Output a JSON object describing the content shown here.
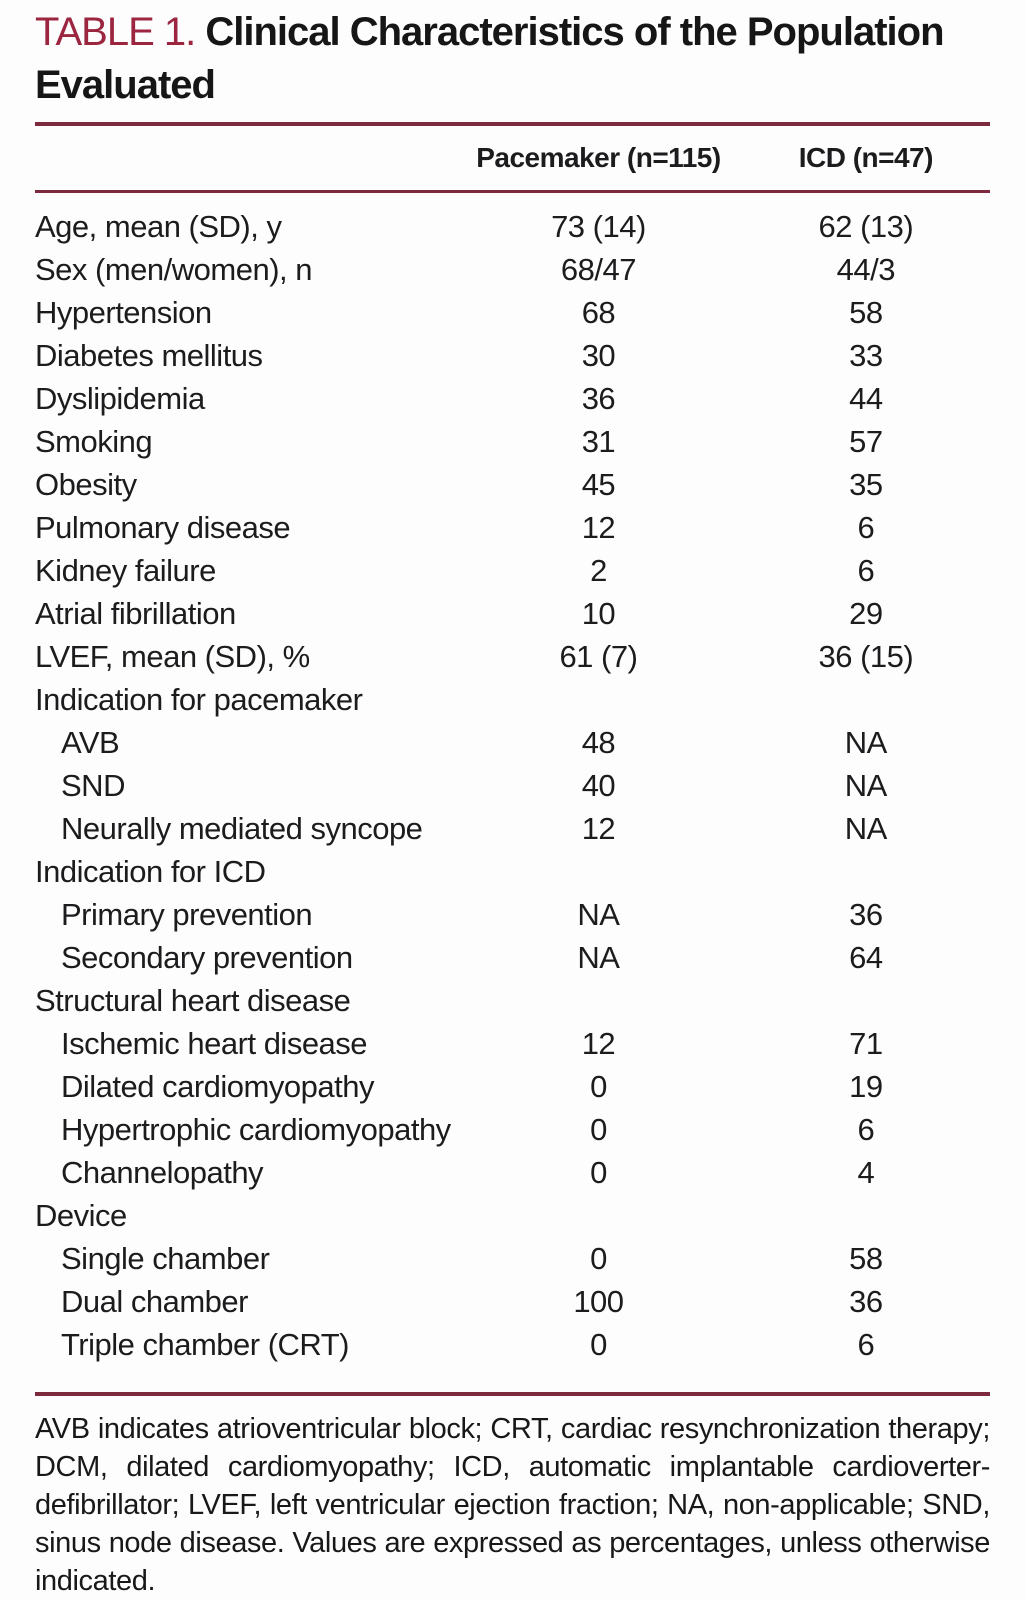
{
  "title": {
    "tag": "TABLE 1.",
    "line1": "Clinical Characteristics of the Population",
    "line2": "Evaluated"
  },
  "table": {
    "header": {
      "col1": "",
      "col2": "Pacemaker (n=115)",
      "col3": "ICD (n=47)"
    },
    "rows": [
      {
        "label": "Age, mean (SD), y",
        "indent": 0,
        "values": [
          "73 (14)",
          "62 (13)"
        ]
      },
      {
        "label": "Sex (men/women), n",
        "indent": 0,
        "values": [
          "68/47",
          "44/3"
        ]
      },
      {
        "label": "Hypertension",
        "indent": 0,
        "values": [
          "68",
          "58"
        ]
      },
      {
        "label": "Diabetes mellitus",
        "indent": 0,
        "values": [
          "30",
          "33"
        ]
      },
      {
        "label": "Dyslipidemia",
        "indent": 0,
        "values": [
          "36",
          "44"
        ]
      },
      {
        "label": "Smoking",
        "indent": 0,
        "values": [
          "31",
          "57"
        ]
      },
      {
        "label": "Obesity",
        "indent": 0,
        "values": [
          "45",
          "35"
        ]
      },
      {
        "label": "Pulmonary disease",
        "indent": 0,
        "values": [
          "12",
          "6"
        ]
      },
      {
        "label": "Kidney failure",
        "indent": 0,
        "values": [
          "2",
          "6"
        ]
      },
      {
        "label": "Atrial fibrillation",
        "indent": 0,
        "values": [
          "10",
          "29"
        ]
      },
      {
        "label": "LVEF, mean (SD), %",
        "indent": 0,
        "values": [
          "61 (7)",
          "36 (15)"
        ]
      },
      {
        "label": "Indication for pacemaker",
        "indent": 0,
        "values": [
          "",
          ""
        ]
      },
      {
        "label": "AVB",
        "indent": 1,
        "values": [
          "48",
          "NA"
        ]
      },
      {
        "label": "SND",
        "indent": 1,
        "values": [
          "40",
          "NA"
        ]
      },
      {
        "label": "Neurally mediated syncope",
        "indent": 1,
        "values": [
          "12",
          "NA"
        ]
      },
      {
        "label": "Indication for ICD",
        "indent": 0,
        "values": [
          "",
          ""
        ]
      },
      {
        "label": "Primary prevention",
        "indent": 1,
        "values": [
          "NA",
          "36"
        ]
      },
      {
        "label": "Secondary prevention",
        "indent": 1,
        "values": [
          "NA",
          "64"
        ]
      },
      {
        "label": "Structural heart disease",
        "indent": 0,
        "values": [
          "",
          ""
        ]
      },
      {
        "label": "Ischemic heart disease",
        "indent": 1,
        "values": [
          "12",
          "71"
        ]
      },
      {
        "label": "Dilated cardiomyopathy",
        "indent": 1,
        "values": [
          "0",
          "19"
        ]
      },
      {
        "label": "Hypertrophic cardiomyopathy",
        "indent": 1,
        "values": [
          "0",
          "6"
        ]
      },
      {
        "label": "Channelopathy",
        "indent": 1,
        "values": [
          "0",
          "4"
        ]
      },
      {
        "label": "Device",
        "indent": 0,
        "values": [
          "",
          ""
        ]
      },
      {
        "label": "Single chamber",
        "indent": 1,
        "values": [
          "0",
          "58"
        ]
      },
      {
        "label": "Dual chamber",
        "indent": 1,
        "values": [
          "100",
          "36"
        ]
      },
      {
        "label": "Triple chamber (CRT)",
        "indent": 1,
        "values": [
          "0",
          "6"
        ]
      }
    ]
  },
  "footnote": "AVB indicates atrioventricular block; CRT, cardiac resynchronization therapy; DCM, dilated cardiomyopathy; ICD, automatic implantable cardioverter-defibrillator; LVEF, left ventricular ejection fraction; NA, non-applicable; SND, sinus node disease. Values are expressed as percentages, unless otherwise indicated.",
  "colors": {
    "accent_red": "#9c2540",
    "rule_maroon": "#7d2a3e",
    "text": "#1c1c1e",
    "background": "#fdfdfd"
  }
}
